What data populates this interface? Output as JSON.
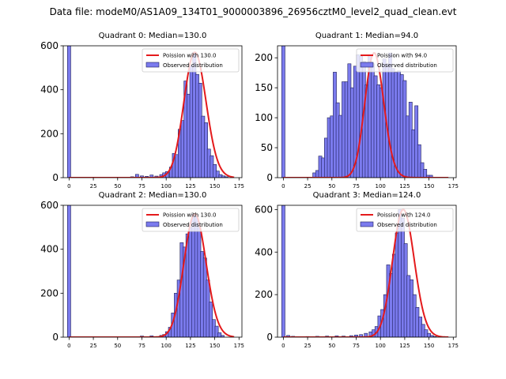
{
  "suptitle": "Data file: modeM0/AS1A09_134T01_9000003896_26956cztM0_level2_quad_clean.evt",
  "colors": {
    "bar_fill": "#7b7bee",
    "bar_edge": "#1f1f5a",
    "poisson": "#e41a1c",
    "axes": "#000000"
  },
  "chart_data": [
    {
      "type": "bar",
      "title": "Quadrant 0: Median=130.0",
      "median": 130,
      "legend": {
        "poisson_label": "Poission with 130.0",
        "observed_label": "Observed distribution",
        "placement": "upper right"
      },
      "xlim": [
        -6,
        178
      ],
      "ylim": [
        0,
        600
      ],
      "xticks": [
        0,
        25,
        50,
        75,
        100,
        125,
        150,
        175
      ],
      "yticks": [
        0,
        200,
        400,
        600
      ],
      "bin_width": 3.4,
      "bins": [
        {
          "x": 0,
          "count": 620
        },
        {
          "x": 65,
          "count": 4
        },
        {
          "x": 70,
          "count": 15
        },
        {
          "x": 75,
          "count": 8
        },
        {
          "x": 80,
          "count": 6
        },
        {
          "x": 85,
          "count": 12
        },
        {
          "x": 90,
          "count": 7
        },
        {
          "x": 95,
          "count": 14
        },
        {
          "x": 98,
          "count": 22
        },
        {
          "x": 101,
          "count": 28
        },
        {
          "x": 105,
          "count": 48
        },
        {
          "x": 108,
          "count": 110
        },
        {
          "x": 111,
          "count": 105
        },
        {
          "x": 114,
          "count": 220
        },
        {
          "x": 117,
          "count": 260
        },
        {
          "x": 120,
          "count": 440
        },
        {
          "x": 123,
          "count": 380
        },
        {
          "x": 126,
          "count": 510
        },
        {
          "x": 129,
          "count": 570
        },
        {
          "x": 132,
          "count": 470
        },
        {
          "x": 135,
          "count": 430
        },
        {
          "x": 138,
          "count": 280
        },
        {
          "x": 141,
          "count": 250
        },
        {
          "x": 144,
          "count": 130
        },
        {
          "x": 147,
          "count": 100
        },
        {
          "x": 150,
          "count": 60
        },
        {
          "x": 153,
          "count": 30
        },
        {
          "x": 156,
          "count": 14
        },
        {
          "x": 159,
          "count": 8
        },
        {
          "x": 162,
          "count": 4
        }
      ]
    },
    {
      "type": "bar",
      "title": "Quadrant 1: Median=94.0",
      "median": 94,
      "legend": {
        "poisson_label": "Poission with 94.0",
        "observed_label": "Observed distribution",
        "placement": "upper right"
      },
      "xlim": [
        -6,
        178
      ],
      "ylim": [
        0,
        220
      ],
      "xticks": [
        0,
        25,
        50,
        75,
        100,
        125,
        150,
        175
      ],
      "yticks": [
        0,
        50,
        100,
        150,
        200
      ],
      "bin_width": 3.4,
      "bins": [
        {
          "x": 0,
          "count": 230
        },
        {
          "x": 32,
          "count": 8
        },
        {
          "x": 35,
          "count": 12
        },
        {
          "x": 38,
          "count": 36
        },
        {
          "x": 41,
          "count": 33
        },
        {
          "x": 44,
          "count": 66
        },
        {
          "x": 47,
          "count": 100
        },
        {
          "x": 50,
          "count": 103
        },
        {
          "x": 53,
          "count": 176
        },
        {
          "x": 56,
          "count": 125
        },
        {
          "x": 59,
          "count": 104
        },
        {
          "x": 62,
          "count": 160
        },
        {
          "x": 65,
          "count": 160
        },
        {
          "x": 68,
          "count": 190
        },
        {
          "x": 71,
          "count": 150
        },
        {
          "x": 74,
          "count": 186
        },
        {
          "x": 77,
          "count": 205
        },
        {
          "x": 80,
          "count": 203
        },
        {
          "x": 83,
          "count": 194
        },
        {
          "x": 86,
          "count": 155
        },
        {
          "x": 89,
          "count": 205
        },
        {
          "x": 92,
          "count": 190
        },
        {
          "x": 95,
          "count": 170
        },
        {
          "x": 98,
          "count": 155
        },
        {
          "x": 101,
          "count": 150
        },
        {
          "x": 104,
          "count": 198
        },
        {
          "x": 107,
          "count": 190
        },
        {
          "x": 110,
          "count": 208
        },
        {
          "x": 113,
          "count": 182
        },
        {
          "x": 116,
          "count": 176
        },
        {
          "x": 119,
          "count": 178
        },
        {
          "x": 122,
          "count": 172
        },
        {
          "x": 125,
          "count": 162
        },
        {
          "x": 128,
          "count": 103
        },
        {
          "x": 131,
          "count": 126
        },
        {
          "x": 134,
          "count": 80
        },
        {
          "x": 137,
          "count": 120
        },
        {
          "x": 140,
          "count": 55
        },
        {
          "x": 143,
          "count": 25
        },
        {
          "x": 146,
          "count": 14
        },
        {
          "x": 149,
          "count": 4
        },
        {
          "x": 152,
          "count": 4
        }
      ]
    },
    {
      "type": "bar",
      "title": "Quadrant 2: Median=130.0",
      "median": 130,
      "legend": {
        "poisson_label": "Poission with 130.0",
        "observed_label": "Observed distribution",
        "placement": "upper right"
      },
      "xlim": [
        -6,
        178
      ],
      "ylim": [
        0,
        600
      ],
      "xticks": [
        0,
        25,
        50,
        75,
        100,
        125,
        150,
        175
      ],
      "yticks": [
        0,
        200,
        400,
        600
      ],
      "bin_width": 3.4,
      "bins": [
        {
          "x": 0,
          "count": 620
        },
        {
          "x": 75,
          "count": 5
        },
        {
          "x": 85,
          "count": 6
        },
        {
          "x": 95,
          "count": 8
        },
        {
          "x": 98,
          "count": 12
        },
        {
          "x": 101,
          "count": 25
        },
        {
          "x": 104,
          "count": 45
        },
        {
          "x": 107,
          "count": 110
        },
        {
          "x": 110,
          "count": 200
        },
        {
          "x": 113,
          "count": 260
        },
        {
          "x": 116,
          "count": 430
        },
        {
          "x": 119,
          "count": 410
        },
        {
          "x": 122,
          "count": 470
        },
        {
          "x": 125,
          "count": 500
        },
        {
          "x": 128,
          "count": 560
        },
        {
          "x": 131,
          "count": 550
        },
        {
          "x": 134,
          "count": 500
        },
        {
          "x": 137,
          "count": 390
        },
        {
          "x": 140,
          "count": 360
        },
        {
          "x": 143,
          "count": 260
        },
        {
          "x": 146,
          "count": 160
        },
        {
          "x": 149,
          "count": 80
        },
        {
          "x": 152,
          "count": 50
        },
        {
          "x": 155,
          "count": 20
        },
        {
          "x": 158,
          "count": 8
        }
      ]
    },
    {
      "type": "bar",
      "title": "Quadrant 3: Median=124.0",
      "median": 124,
      "legend": {
        "poisson_label": "Poission with 124.0",
        "observed_label": "Observed distribution",
        "placement": "upper right"
      },
      "xlim": [
        -6,
        178
      ],
      "ylim": [
        0,
        620
      ],
      "xticks": [
        0,
        25,
        50,
        75,
        100,
        125,
        150,
        175
      ],
      "yticks": [
        0,
        200,
        400,
        600
      ],
      "bin_width": 3.4,
      "bins": [
        {
          "x": 0,
          "count": 620
        },
        {
          "x": 5,
          "count": 8
        },
        {
          "x": 10,
          "count": 4
        },
        {
          "x": 25,
          "count": 3
        },
        {
          "x": 35,
          "count": 4
        },
        {
          "x": 45,
          "count": 5
        },
        {
          "x": 55,
          "count": 6
        },
        {
          "x": 62,
          "count": 5
        },
        {
          "x": 70,
          "count": 7
        },
        {
          "x": 75,
          "count": 10
        },
        {
          "x": 80,
          "count": 12
        },
        {
          "x": 85,
          "count": 18
        },
        {
          "x": 90,
          "count": 25
        },
        {
          "x": 93,
          "count": 35
        },
        {
          "x": 96,
          "count": 50
        },
        {
          "x": 99,
          "count": 100
        },
        {
          "x": 102,
          "count": 130
        },
        {
          "x": 105,
          "count": 200
        },
        {
          "x": 108,
          "count": 340
        },
        {
          "x": 111,
          "count": 300
        },
        {
          "x": 114,
          "count": 390
        },
        {
          "x": 117,
          "count": 490
        },
        {
          "x": 120,
          "count": 600
        },
        {
          "x": 123,
          "count": 560
        },
        {
          "x": 126,
          "count": 440
        },
        {
          "x": 129,
          "count": 290
        },
        {
          "x": 132,
          "count": 270
        },
        {
          "x": 135,
          "count": 200
        },
        {
          "x": 138,
          "count": 140
        },
        {
          "x": 141,
          "count": 95
        },
        {
          "x": 144,
          "count": 60
        },
        {
          "x": 147,
          "count": 35
        },
        {
          "x": 150,
          "count": 18
        },
        {
          "x": 153,
          "count": 8
        },
        {
          "x": 156,
          "count": 3
        }
      ]
    }
  ]
}
